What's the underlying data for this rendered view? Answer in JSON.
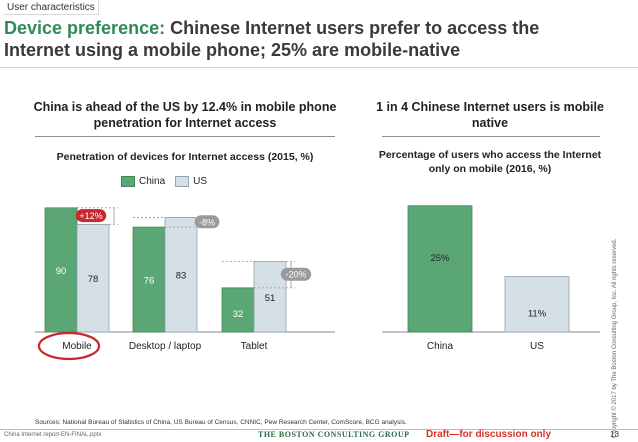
{
  "section_label": "User characteristics",
  "headline": {
    "accent": "Device preference:",
    "text": " Chinese Internet users prefer to access the Internet using a mobile phone; 25% are mobile-native"
  },
  "left_panel": {
    "title": "China is ahead of the US by 12.4% in mobile phone penetration for Internet access"
  },
  "right_panel": {
    "title": "1 in 4 Chinese Internet users is mobile native"
  },
  "colors": {
    "china": "#5aa775",
    "us": "#d5e0e6",
    "highlight_red": "#c8282d",
    "pill_grey": "#9a9a9a",
    "accent_green": "#2e8b57"
  },
  "chart_data": [
    {
      "type": "bar",
      "title": "Penetration of devices for Internet access (2015, %)",
      "categories": [
        "Mobile",
        "Desktop / laptop",
        "Tablet"
      ],
      "series": [
        {
          "name": "China",
          "values": [
            90,
            76,
            32
          ],
          "labels": [
            "90",
            "76",
            "32"
          ]
        },
        {
          "name": "US",
          "values": [
            78,
            83,
            51
          ],
          "labels": [
            "78",
            "83",
            "51"
          ]
        }
      ],
      "ylim": [
        0,
        100
      ],
      "grid": false,
      "legend": "top-left",
      "annotations": [
        {
          "category": "Mobile",
          "text": "+12%",
          "color": "red"
        },
        {
          "category": "Desktop / laptop",
          "text": "-8%",
          "color": "grey"
        },
        {
          "category": "Tablet",
          "text": "-20%",
          "color": "grey"
        }
      ],
      "highlight": "Mobile"
    },
    {
      "type": "bar",
      "title": "Percentage of users who access the Internet only on mobile (2016, %)",
      "categories": [
        "China",
        "US"
      ],
      "series": [
        {
          "values": [
            25,
            11
          ],
          "labels": [
            "25%",
            "11%"
          ],
          "colors": [
            "#5aa775",
            "#d5e0e6"
          ]
        }
      ],
      "ylim": [
        0,
        28
      ],
      "grid": false
    }
  ],
  "copyright": "Copyright © 2017 by The Boston Consulting Group, Inc. All rights reserved.",
  "footer": {
    "sources": "Sources: National Bureau of Statistics of China, US Bureau of Census, CNNIC, Pew Research Center, ComScore, BCG analysis.",
    "filename": "China Internet report-EN-FINAL.pptx",
    "logo": "THE BOSTON CONSULTING GROUP",
    "draft": "Draft—for discussion only",
    "page": "13"
  }
}
